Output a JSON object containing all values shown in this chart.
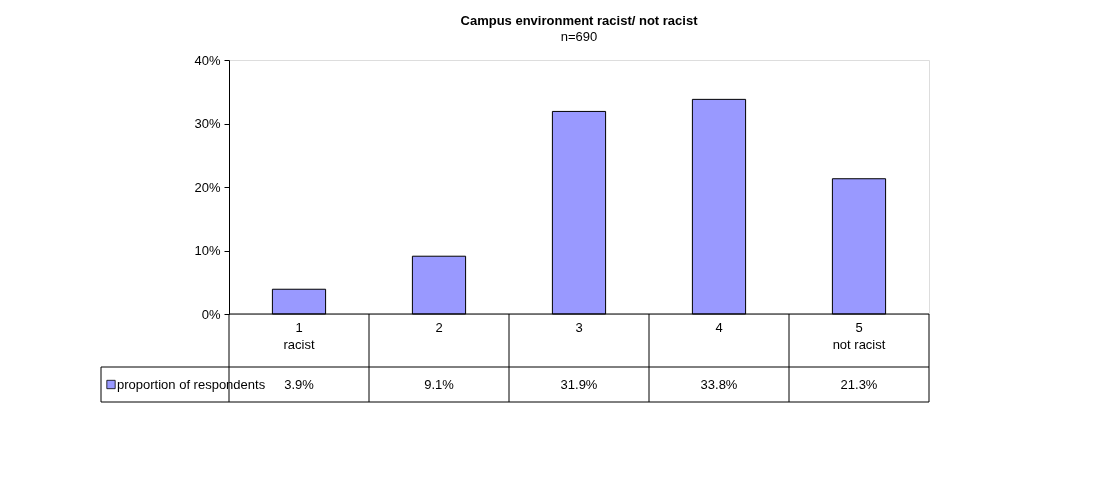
{
  "chart_data": {
    "type": "bar",
    "title": "Campus environment racist/ not racist",
    "subtitle": "n=690",
    "categories": [
      "1\nracist",
      "2",
      "3",
      "4",
      "5\nnot racist"
    ],
    "series": [
      {
        "name": "proportion of respondents",
        "color": "#9999ff",
        "values": [
          3.9,
          9.1,
          31.9,
          33.8,
          21.3
        ],
        "value_labels": [
          "3.9%",
          "9.1%",
          "31.9%",
          "33.8%",
          "21.3%"
        ]
      }
    ],
    "ylim": [
      0,
      40
    ],
    "yticks": [
      {
        "value": 0,
        "label": "0%"
      },
      {
        "value": 10,
        "label": "10%"
      },
      {
        "value": 20,
        "label": "20%"
      },
      {
        "value": 30,
        "label": "30%"
      },
      {
        "value": 40,
        "label": "40%"
      }
    ],
    "grid": false,
    "legend": "bottom"
  }
}
